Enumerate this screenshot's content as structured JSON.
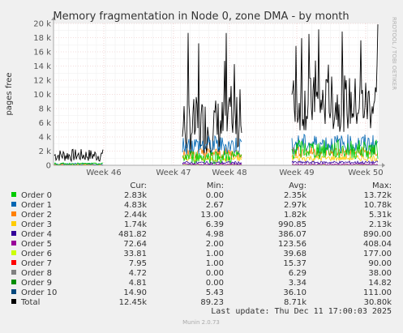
{
  "chart_data": {
    "type": "line",
    "title": "Memory fragmentation in Node 0, zone DMA - by month",
    "ylabel": "pages free",
    "y_ticks": [
      "0",
      "2 k",
      "4 k",
      "6 k",
      "8 k",
      "10 k",
      "12 k",
      "14 k",
      "16 k",
      "18 k",
      "20 k"
    ],
    "y_tick_values": [
      0,
      2000,
      4000,
      6000,
      8000,
      10000,
      12000,
      14000,
      16000,
      18000,
      20000
    ],
    "ylim": [
      0,
      20000
    ],
    "x_ticks": [
      "Week 46",
      "Week 47",
      "Week 48",
      "Week 49",
      "Week 50"
    ],
    "grid": true,
    "watermark": "RRDTOOL / TOBI OETIKER",
    "columns": {
      "cur": "Cur:",
      "min": "Min:",
      "avg": "Avg:",
      "max": "Max:"
    },
    "series": [
      {
        "name": "Order 0",
        "color": "#00cc00",
        "cur": "2.83k",
        "min": "0.00",
        "avg": "2.35k",
        "max": "13.72k"
      },
      {
        "name": "Order 1",
        "color": "#0066b3",
        "cur": "4.83k",
        "min": "2.67",
        "avg": "2.97k",
        "max": "10.78k"
      },
      {
        "name": "Order 2",
        "color": "#ff8000",
        "cur": "2.44k",
        "min": "13.00",
        "avg": "1.82k",
        "max": "5.31k"
      },
      {
        "name": "Order 3",
        "color": "#ffcc00",
        "cur": "1.74k",
        "min": "6.39",
        "avg": "990.85",
        "max": "2.13k"
      },
      {
        "name": "Order 4",
        "color": "#330099",
        "cur": "481.82",
        "min": "4.98",
        "avg": "386.07",
        "max": "890.00"
      },
      {
        "name": "Order 5",
        "color": "#990099",
        "cur": "72.64",
        "min": "2.00",
        "avg": "123.56",
        "max": "408.04"
      },
      {
        "name": "Order 6",
        "color": "#ccff00",
        "cur": "33.81",
        "min": "1.00",
        "avg": "39.68",
        "max": "177.00"
      },
      {
        "name": "Order 7",
        "color": "#ff0000",
        "cur": "7.95",
        "min": "1.00",
        "avg": "15.37",
        "max": "90.00"
      },
      {
        "name": "Order 8",
        "color": "#808080",
        "cur": "4.72",
        "min": "0.00",
        "avg": "6.29",
        "max": "38.00"
      },
      {
        "name": "Order 9",
        "color": "#008f00",
        "cur": "4.81",
        "min": "0.00",
        "avg": "3.34",
        "max": "14.82"
      },
      {
        "name": "Order 10",
        "color": "#00487d",
        "cur": "14.90",
        "min": "5.43",
        "avg": "36.10",
        "max": "111.00"
      },
      {
        "name": "Total",
        "color": "#000000",
        "cur": "12.45k",
        "min": "89.23",
        "avg": "8.71k",
        "max": "30.80k"
      }
    ]
  },
  "footer": {
    "last_update": "Last update: Thu Dec 11 17:00:03 2025",
    "munin": "Munin 2.0.73"
  }
}
